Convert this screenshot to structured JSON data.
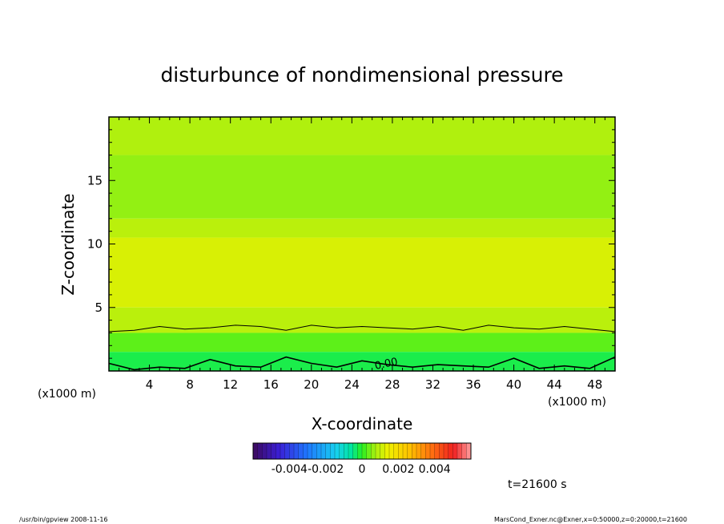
{
  "chart_data": {
    "type": "heatmap",
    "title": "disturbunce of nondimensional pressure",
    "xlabel": "X-coordinate",
    "ylabel": "Z-coordinate",
    "x_unit_left": "(x1000 m)",
    "x_unit_right": "(x1000 m)",
    "xlim": [
      0,
      50
    ],
    "ylim": [
      0,
      20
    ],
    "x_ticks": [
      4,
      8,
      12,
      16,
      20,
      24,
      28,
      32,
      36,
      40,
      44,
      48
    ],
    "y_ticks": [
      5,
      10,
      15
    ],
    "colorbar": {
      "range": [
        -0.006,
        0.006
      ],
      "tick_values": [
        -0.004,
        -0.002,
        0,
        0.002,
        0.004
      ],
      "tick_labels": [
        "-0.004",
        "-0.002",
        "0",
        "0.002",
        "0.004"
      ]
    },
    "contour_label": "0.00",
    "field_layers": [
      {
        "z": [
          17,
          20
        ],
        "value": 0.0008
      },
      {
        "z": [
          12,
          17
        ],
        "value": 0.0006
      },
      {
        "z": [
          10.5,
          12
        ],
        "value": 0.0009
      },
      {
        "z": [
          5,
          10.5
        ],
        "value": 0.0012
      },
      {
        "z": [
          3,
          5
        ],
        "value": 0.0009
      },
      {
        "z": [
          1.5,
          3
        ],
        "value": 0.0003
      },
      {
        "z": [
          0,
          1.5
        ],
        "value": -0.0002
      }
    ],
    "contour_upper_z": [
      3.1,
      3.2,
      3.5,
      3.3,
      3.4,
      3.6,
      3.5,
      3.2,
      3.6,
      3.4,
      3.5,
      3.4,
      3.3,
      3.5,
      3.2,
      3.6,
      3.4,
      3.3,
      3.5,
      3.3,
      3.1
    ],
    "contour_lower_z": [
      0.6,
      0.1,
      0.3,
      0.2,
      0.9,
      0.4,
      0.3,
      1.1,
      0.6,
      0.3,
      0.8,
      0.5,
      0.3,
      0.5,
      0.4,
      0.3,
      1.0,
      0.2,
      0.4,
      0.2,
      1.1
    ]
  },
  "time_label": "t=21600 s",
  "footer_left": "/usr/bin/gpview  2008-11-16",
  "footer_right": "MarsCond_Exner.nc@Exner,x=0:50000,z=0:20000,t=21600"
}
